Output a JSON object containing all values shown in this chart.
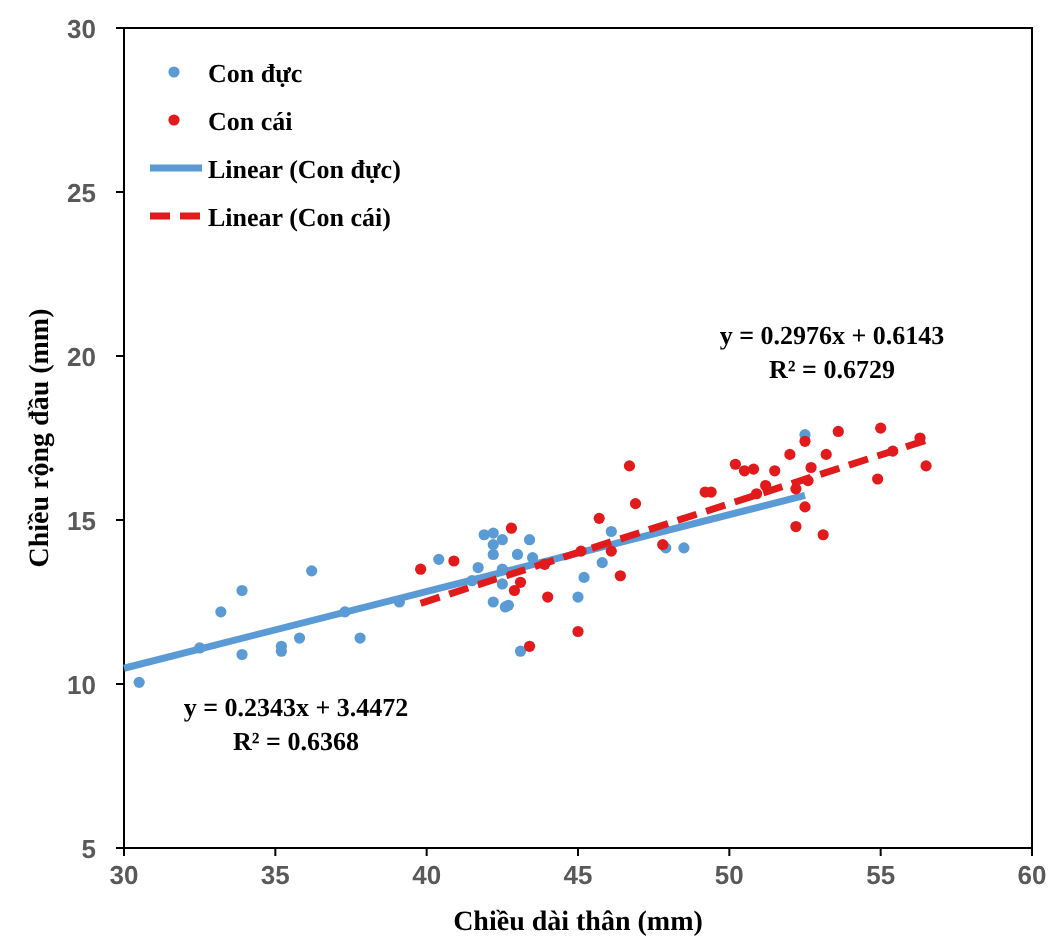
{
  "chart_data": {
    "type": "scatter",
    "xlabel": "Chiều dài thân (mm)",
    "ylabel": "Chiều rộng đầu (mm)",
    "xlim": [
      30,
      60
    ],
    "xticks": [
      30,
      35,
      40,
      45,
      50,
      55,
      60
    ],
    "ylim": [
      5,
      30
    ],
    "yticks": [
      5,
      10,
      15,
      20,
      25,
      30
    ],
    "grid": false,
    "legend": "top left",
    "marker": "circle",
    "series": [
      {
        "name": "Con đực",
        "color": "#5b9bd5",
        "x": [
          30.5,
          32.5,
          33.2,
          33.9,
          33.9,
          35.2,
          35.2,
          35.8,
          36.2,
          37.3,
          37.8,
          39.1,
          40.4,
          41.5,
          41.7,
          41.9,
          42.2,
          42.2,
          42.2,
          42.2,
          42.5,
          42.5,
          42.6,
          42.7,
          42.5,
          43.0,
          43.1,
          43.4,
          43.5,
          45.0,
          45.2,
          45.8,
          46.1,
          47.9,
          48.5,
          52.5
        ],
        "values": [
          10.05,
          11.1,
          12.2,
          12.85,
          10.9,
          11.15,
          11.0,
          11.4,
          13.45,
          12.2,
          11.4,
          12.5,
          13.8,
          13.15,
          13.55,
          14.55,
          14.6,
          13.95,
          14.25,
          12.5,
          14.4,
          13.5,
          12.35,
          12.4,
          13.05,
          13.95,
          11.0,
          14.4,
          13.85,
          12.65,
          13.25,
          13.7,
          14.65,
          14.15,
          14.15,
          17.6
        ]
      },
      {
        "name": "Con cái",
        "color": "#e31a1c",
        "x": [
          39.8,
          40.9,
          42.8,
          42.9,
          43.1,
          43.4,
          44.0,
          43.9,
          45.0,
          45.1,
          45.7,
          46.4,
          46.1,
          46.7,
          46.9,
          47.8,
          49.2,
          49.4,
          50.2,
          50.5,
          50.8,
          50.9,
          51.2,
          51.5,
          52.0,
          52.2,
          52.2,
          52.5,
          52.5,
          52.6,
          52.7,
          53.1,
          53.2,
          53.6,
          54.9,
          55.0,
          55.4,
          56.3,
          56.5
        ],
        "values": [
          13.5,
          13.75,
          14.75,
          12.85,
          13.1,
          11.15,
          12.65,
          13.65,
          11.6,
          14.05,
          15.05,
          13.3,
          14.05,
          16.65,
          15.5,
          14.25,
          15.85,
          15.85,
          16.7,
          16.5,
          16.55,
          15.8,
          16.05,
          16.5,
          17.0,
          14.8,
          15.95,
          17.4,
          15.4,
          16.2,
          16.6,
          14.55,
          17.0,
          17.7,
          16.25,
          17.8,
          17.1,
          17.5,
          16.65
        ]
      },
      {
        "name": "Linear (Con đực)",
        "type": "line",
        "color": "#5b9bd5",
        "line_style": "solid",
        "marker": "none",
        "x": [
          30,
          52.5
        ],
        "values": [
          10.48,
          15.75
        ]
      },
      {
        "name": "Linear (Con cái)",
        "type": "line",
        "color": "#e31a1c",
        "line_style": "dashed",
        "marker": "none",
        "x": [
          39.8,
          56.7
        ],
        "values": [
          12.46,
          17.49
        ]
      }
    ],
    "annotations": [
      "y = 0.2343x + 3.4472",
      "R² = 0.6368",
      "y = 0.2976x + 0.6143",
      "R² = 0.6729"
    ]
  }
}
